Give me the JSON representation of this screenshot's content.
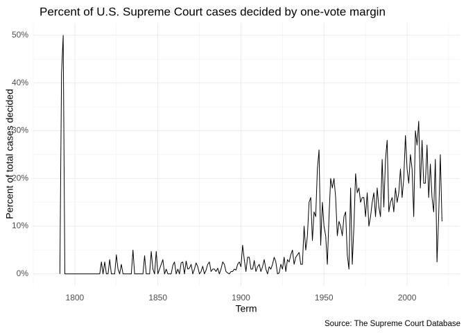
{
  "chart_data": {
    "type": "line",
    "title": "Percent of U.S. Supreme Court cases decided by one-vote margin",
    "xlabel": "Term",
    "ylabel": "Percent of total cases decided",
    "caption": "Source: The Supreme Court Database",
    "color": "#000000",
    "grid": true,
    "xlim": [
      1775,
      2031.7
    ],
    "xticks": [
      1800,
      1850,
      1900,
      1950,
      2000
    ],
    "ylim": [
      -2.5,
      52.6
    ],
    "yticks": [
      {
        "value": 0,
        "label": "0%"
      },
      {
        "value": 10,
        "label": "10%"
      },
      {
        "value": 20,
        "label": "20%"
      },
      {
        "value": 30,
        "label": "30%"
      },
      {
        "value": 40,
        "label": "40%"
      },
      {
        "value": 50,
        "label": "50%"
      }
    ],
    "x": [
      1791,
      1792,
      1793,
      1794,
      1795,
      1796,
      1797,
      1798,
      1799,
      1800,
      1801,
      1802,
      1803,
      1804,
      1805,
      1806,
      1807,
      1808,
      1809,
      1810,
      1811,
      1812,
      1813,
      1814,
      1815,
      1816,
      1817,
      1818,
      1819,
      1820,
      1821,
      1822,
      1823,
      1824,
      1825,
      1826,
      1827,
      1828,
      1829,
      1830,
      1831,
      1832,
      1833,
      1834,
      1835,
      1836,
      1837,
      1838,
      1839,
      1840,
      1841,
      1842,
      1843,
      1844,
      1845,
      1846,
      1847,
      1848,
      1849,
      1850,
      1851,
      1852,
      1853,
      1854,
      1855,
      1856,
      1857,
      1858,
      1859,
      1860,
      1861,
      1862,
      1863,
      1864,
      1865,
      1866,
      1867,
      1868,
      1869,
      1870,
      1871,
      1872,
      1873,
      1874,
      1875,
      1876,
      1877,
      1878,
      1879,
      1880,
      1881,
      1882,
      1883,
      1884,
      1885,
      1886,
      1887,
      1888,
      1889,
      1890,
      1891,
      1892,
      1893,
      1894,
      1895,
      1896,
      1897,
      1898,
      1899,
      1900,
      1901,
      1902,
      1903,
      1904,
      1905,
      1906,
      1907,
      1908,
      1909,
      1910,
      1911,
      1912,
      1913,
      1914,
      1915,
      1916,
      1917,
      1918,
      1919,
      1920,
      1921,
      1922,
      1923,
      1924,
      1925,
      1926,
      1927,
      1928,
      1929,
      1930,
      1931,
      1932,
      1933,
      1934,
      1935,
      1936,
      1937,
      1938,
      1939,
      1940,
      1941,
      1942,
      1943,
      1944,
      1945,
      1946,
      1947,
      1948,
      1949,
      1950,
      1951,
      1952,
      1953,
      1954,
      1955,
      1956,
      1957,
      1958,
      1959,
      1960,
      1961,
      1962,
      1963,
      1964,
      1965,
      1966,
      1967,
      1968,
      1969,
      1970,
      1971,
      1972,
      1973,
      1974,
      1975,
      1976,
      1977,
      1978,
      1979,
      1980,
      1981,
      1982,
      1983,
      1984,
      1985,
      1986,
      1987,
      1988,
      1989,
      1990,
      1991,
      1992,
      1993,
      1994,
      1995,
      1996,
      1997,
      1998,
      1999,
      2000,
      2001,
      2002,
      2003,
      2004,
      2005,
      2006,
      2007,
      2008,
      2009,
      2010,
      2011,
      2012,
      2013,
      2014,
      2015,
      2016,
      2017,
      2018,
      2019,
      2020,
      2021
    ],
    "values": [
      0,
      42,
      50,
      0,
      0,
      0,
      0,
      0,
      0,
      0,
      0,
      0,
      0,
      0,
      0,
      0,
      0,
      0,
      0,
      0,
      0,
      0,
      0,
      0,
      0,
      2.5,
      0,
      2.5,
      0,
      0,
      3,
      0,
      0,
      0,
      4,
      1,
      0,
      2,
      0,
      0,
      0,
      0,
      0,
      0,
      5,
      0,
      0,
      0,
      0,
      0,
      0,
      3.8,
      0,
      0,
      0,
      4.7,
      1,
      0,
      4.7,
      0,
      1,
      2,
      3,
      0,
      1,
      0,
      0,
      0,
      1.8,
      2.5,
      0,
      1,
      0,
      2.3,
      2.5,
      0,
      2.7,
      1,
      1.2,
      2,
      0,
      1,
      2.3,
      1.5,
      0,
      0.5,
      1.6,
      0,
      0.8,
      2,
      2.5,
      0.5,
      1,
      1,
      0.5,
      1.2,
      0,
      1,
      2.5,
      2,
      0.5,
      0.2,
      0,
      0.5,
      0.5,
      1,
      0.8,
      2,
      2.5,
      1.5,
      6,
      3,
      0.5,
      3.5,
      3.5,
      1,
      1,
      2.8,
      0.5,
      1.5,
      2,
      0.5,
      1.5,
      3,
      1,
      0,
      1.5,
      1,
      2,
      3.5,
      2.5,
      0,
      0.2,
      2,
      1,
      3.5,
      0.5,
      3,
      2.5,
      4,
      5,
      2,
      3.5,
      4,
      4.5,
      2,
      2,
      10,
      5,
      8,
      15,
      16,
      7,
      13,
      12,
      22,
      26,
      6,
      15,
      10,
      8,
      2,
      12,
      20,
      18,
      20,
      16,
      8,
      11,
      10,
      8,
      12,
      13,
      4,
      1,
      18,
      2,
      10,
      21,
      17,
      18,
      15,
      16,
      16,
      12,
      17,
      10,
      12,
      15,
      17,
      12,
      18,
      14,
      12,
      24,
      14,
      24,
      28,
      13,
      15,
      16,
      13,
      18,
      15,
      17,
      22,
      16,
      20,
      29,
      22,
      19,
      25,
      22,
      12,
      30,
      27,
      32,
      18,
      28,
      19,
      19,
      27,
      16,
      23,
      16,
      13,
      24,
      2.5,
      12,
      25,
      11
    ]
  }
}
